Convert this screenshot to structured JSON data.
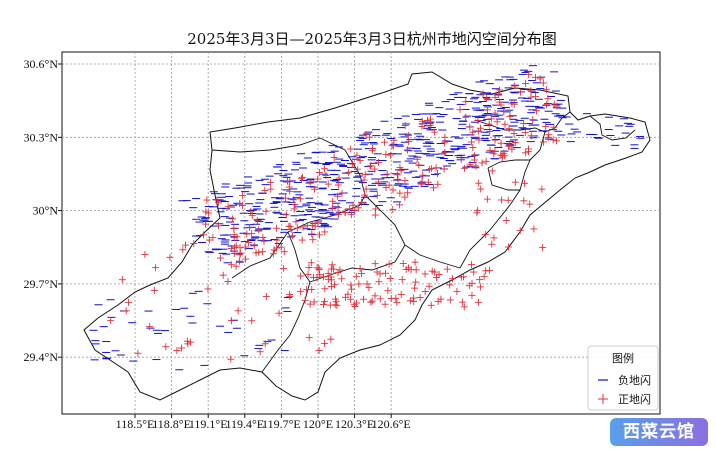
{
  "title": "2025年3月3日—2025年3月3日杭州市地闪空间分布图",
  "axes": {
    "x_ticks": [
      "118.5°E",
      "118.8°E",
      "119.1°E",
      "119.4°E",
      "119.7°E",
      "120°E",
      "120.3°E",
      "120.6°E"
    ],
    "y_ticks": [
      "30.6°N",
      "30.3°N",
      "30°N",
      "29.7°N",
      "29.4°N"
    ],
    "x_values": [
      118.5,
      118.8,
      119.1,
      119.4,
      119.7,
      120.0,
      120.3,
      120.6
    ],
    "y_values": [
      30.6,
      30.3,
      30.0,
      29.7,
      29.4
    ],
    "xlim": [
      118.2,
      120.8
    ],
    "ylim": [
      29.2,
      30.65
    ]
  },
  "legend": {
    "title": "图例",
    "negative_label": "负地闪",
    "positive_label": "正地闪"
  },
  "colors": {
    "negative": "#1010d0",
    "positive": "#e0303a",
    "boundary": "#111111",
    "grid": "#999999"
  },
  "watermark": "西菜云馆",
  "chart_data": {
    "type": "scatter",
    "series": [
      {
        "name": "负地闪",
        "marker": "minus",
        "color": "#1010d0",
        "region": "northwest-belt",
        "lon_range": [
          118.85,
          120.4
        ],
        "lat_range": [
          29.85,
          30.55
        ],
        "approx_count": 900
      },
      {
        "name": "正地闪",
        "marker": "plus",
        "color": "#e0303a",
        "region": "northwest-belt-and-south",
        "lon_range": [
          118.5,
          120.7
        ],
        "lat_range": [
          29.4,
          30.55
        ],
        "approx_count": 500
      }
    ],
    "grid": true,
    "legend_position": "bottom-right"
  }
}
